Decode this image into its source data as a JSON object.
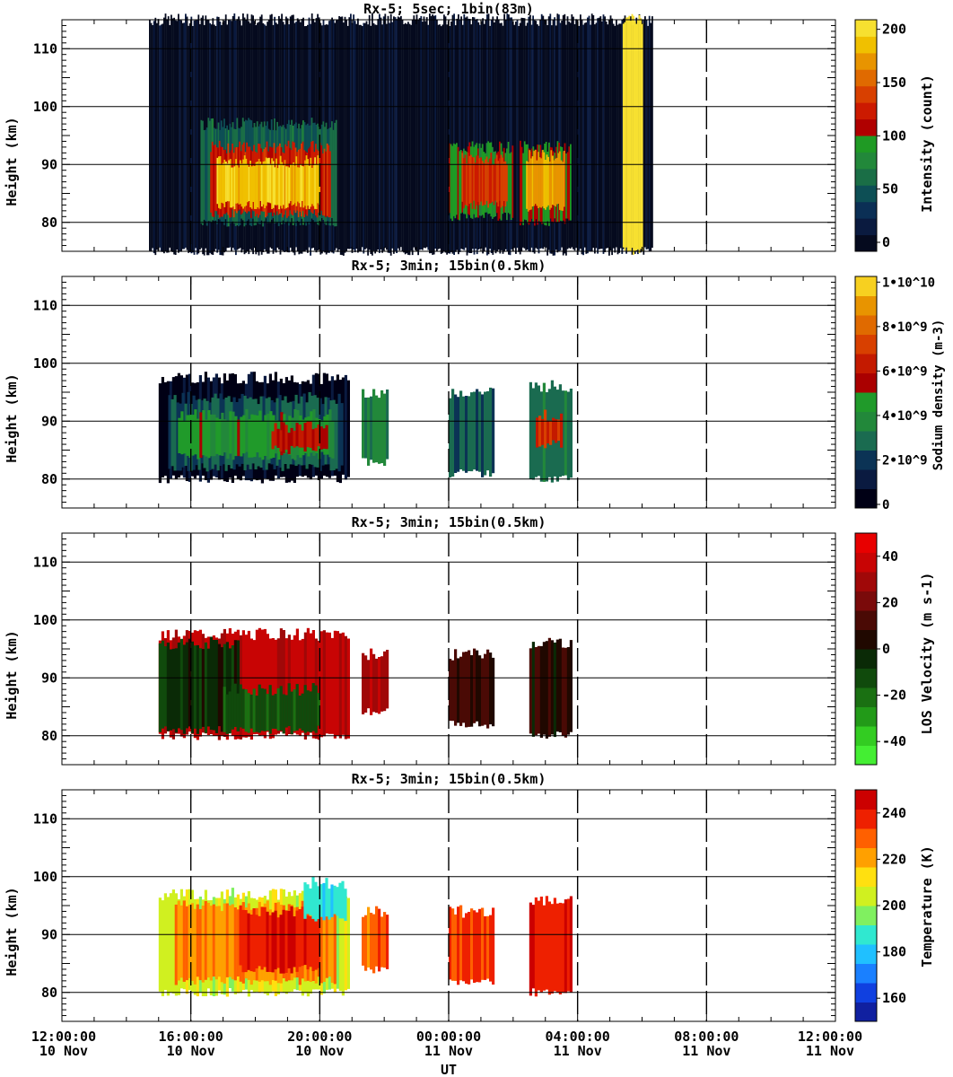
{
  "chart_data": [
    {
      "type": "heatmap",
      "title": "Rx-5;  5sec; 1bin(83m)",
      "ylabel": "Height (km)",
      "xlabel": "",
      "ylim": [
        75,
        115
      ],
      "y_ticks": [
        "110",
        "100",
        "90",
        "80"
      ],
      "colorbar": {
        "label": "Intensity (count)",
        "ticks": [
          "200",
          "150",
          "100",
          "50",
          "0"
        ],
        "range": [
          0,
          200
        ],
        "colors": [
          "#050a1e",
          "#0a1a3f",
          "#0b2f55",
          "#0d4f55",
          "#1a6e46",
          "#22883a",
          "#1f9a24",
          "#b00000",
          "#cc1a00",
          "#d84000",
          "#e06a00",
          "#e89400",
          "#f0c000",
          "#f7e030"
        ]
      },
      "layers": [
        {
          "x0": 14.7,
          "x1": 30.3,
          "y0": 75,
          "y1": 115,
          "value": 8
        },
        {
          "x0": 16.3,
          "x1": 20.5,
          "y0": 80,
          "y1": 97,
          "value": 60
        },
        {
          "x0": 16.6,
          "x1": 20.3,
          "y0": 81.5,
          "y1": 93,
          "value": 120
        },
        {
          "x0": 16.8,
          "x1": 20.0,
          "y0": 83,
          "y1": 90.5,
          "value": 180
        },
        {
          "x0": 24.0,
          "x1": 26.0,
          "y0": 81,
          "y1": 93,
          "value": 95
        },
        {
          "x0": 24.4,
          "x1": 25.8,
          "y0": 83,
          "y1": 91,
          "value": 130
        },
        {
          "x0": 26.2,
          "x1": 27.8,
          "y0": 80,
          "y1": 93,
          "value": 100
        },
        {
          "x0": 26.4,
          "x1": 27.6,
          "y0": 82.5,
          "y1": 91.5,
          "value": 170
        },
        {
          "x0": 29.4,
          "x1": 30.0,
          "y0": 75,
          "y1": 115,
          "value": 200
        }
      ]
    },
    {
      "type": "heatmap",
      "title": "Rx-5; 3min; 15bin(0.5km)",
      "ylabel": "Height (km)",
      "xlabel": "",
      "ylim": [
        75,
        115
      ],
      "y_ticks": [
        "110",
        "100",
        "90",
        "80"
      ],
      "colorbar": {
        "label": "Sodium density (m-3)",
        "ticks": [
          "1•10^10",
          "8•10^9",
          "6•10^9",
          "4•10^9",
          "2•10^9",
          "0"
        ],
        "range": [
          0,
          10
        ],
        "colors": [
          "#000015",
          "#0a1a40",
          "#0b3355",
          "#1a6b50",
          "#22883a",
          "#209a2a",
          "#aa0000",
          "#c41a00",
          "#d84000",
          "#e06a00",
          "#e89400",
          "#f7d020"
        ]
      },
      "layers": [
        {
          "x0": 15.0,
          "x1": 20.9,
          "y0": 80,
          "y1": 97.5,
          "value": 0.6
        },
        {
          "x0": 15.3,
          "x1": 20.7,
          "y0": 82,
          "y1": 94,
          "value": 2.5
        },
        {
          "x0": 15.6,
          "x1": 20.4,
          "y0": 84,
          "y1": 91,
          "value": 4.5
        },
        {
          "x0": 18.5,
          "x1": 20.2,
          "y0": 85,
          "y1": 89,
          "value": 6.0
        },
        {
          "x0": 21.3,
          "x1": 22.1,
          "y0": 83,
          "y1": 95,
          "value": 3.5
        },
        {
          "x0": 24.0,
          "x1": 25.4,
          "y0": 81,
          "y1": 95,
          "value": 2.5
        },
        {
          "x0": 26.5,
          "x1": 27.8,
          "y0": 80,
          "y1": 96,
          "value": 3.0
        },
        {
          "x0": 26.7,
          "x1": 27.5,
          "y0": 86,
          "y1": 91,
          "value": 6.5
        }
      ]
    },
    {
      "type": "heatmap",
      "title": "Rx-5; 3min; 15bin(0.5km)",
      "ylabel": "Height (km)",
      "xlabel": "",
      "ylim": [
        75,
        115
      ],
      "y_ticks": [
        "110",
        "100",
        "90",
        "80"
      ],
      "colorbar": {
        "label": "LOS Velocity (m s-1)",
        "ticks": [
          "40",
          "20",
          "0",
          "-20",
          "-40"
        ],
        "range": [
          -50,
          50
        ],
        "colors": [
          "#44ee33",
          "#33cc22",
          "#229a18",
          "#1a7012",
          "#104a0c",
          "#0a2a06",
          "#200800",
          "#4a0a05",
          "#7a0a0a",
          "#a00808",
          "#c80404",
          "#e80000"
        ]
      },
      "layers": [
        {
          "x0": 15.0,
          "x1": 20.9,
          "y0": 80,
          "y1": 97.5,
          "value": 35
        },
        {
          "x0": 15.0,
          "x1": 17.5,
          "y0": 81,
          "y1": 96,
          "value": -5
        },
        {
          "x0": 17.0,
          "x1": 20.0,
          "y0": 81,
          "y1": 88,
          "value": -15
        },
        {
          "x0": 21.3,
          "x1": 22.1,
          "y0": 84,
          "y1": 94,
          "value": 30
        },
        {
          "x0": 24.0,
          "x1": 25.4,
          "y0": 82,
          "y1": 94,
          "value": 10
        },
        {
          "x0": 26.5,
          "x1": 27.8,
          "y0": 80,
          "y1": 96,
          "value": 5
        }
      ]
    },
    {
      "type": "heatmap",
      "title": "Rx-5; 3min; 15bin(0.5km)",
      "ylabel": "Height (km)",
      "xlabel": "UT",
      "ylim": [
        75,
        115
      ],
      "y_ticks": [
        "110",
        "100",
        "90",
        "80"
      ],
      "colorbar": {
        "label": "Temperature (K)",
        "ticks": [
          "240",
          "220",
          "200",
          "180",
          "160"
        ],
        "range": [
          150,
          250
        ],
        "colors": [
          "#1020a0",
          "#1040e0",
          "#1a80ff",
          "#20c0ff",
          "#30e8d0",
          "#80f060",
          "#d0f020",
          "#ffe010",
          "#ffa000",
          "#ff6000",
          "#ee2000",
          "#cc0000"
        ]
      },
      "layers": [
        {
          "x0": 15.0,
          "x1": 20.9,
          "y0": 80,
          "y1": 97,
          "value": 205
        },
        {
          "x0": 15.5,
          "x1": 20.5,
          "y0": 82,
          "y1": 95,
          "value": 225
        },
        {
          "x0": 17.5,
          "x1": 20.0,
          "y0": 84,
          "y1": 94,
          "value": 240
        },
        {
          "x0": 19.5,
          "x1": 20.8,
          "y0": 93,
          "y1": 99,
          "value": 185
        },
        {
          "x0": 21.3,
          "x1": 22.1,
          "y0": 84,
          "y1": 94,
          "value": 230
        },
        {
          "x0": 24.0,
          "x1": 25.4,
          "y0": 82,
          "y1": 94,
          "value": 235
        },
        {
          "x0": 26.5,
          "x1": 27.8,
          "y0": 80,
          "y1": 96,
          "value": 240
        }
      ]
    }
  ],
  "x_axis": {
    "range_hours": [
      12,
      36
    ],
    "ticks": [
      {
        "time": "12:00:00",
        "date": "10 Nov",
        "hour": 12
      },
      {
        "time": "16:00:00",
        "date": "10 Nov",
        "hour": 16
      },
      {
        "time": "20:00:00",
        "date": "10 Nov",
        "hour": 20
      },
      {
        "time": "00:00:00",
        "date": "11 Nov",
        "hour": 24
      },
      {
        "time": "04:00:00",
        "date": "11 Nov",
        "hour": 28
      },
      {
        "time": "08:00:00",
        "date": "11 Nov",
        "hour": 32
      },
      {
        "time": "12:00:00",
        "date": "11 Nov",
        "hour": 36
      }
    ],
    "label": "UT"
  }
}
